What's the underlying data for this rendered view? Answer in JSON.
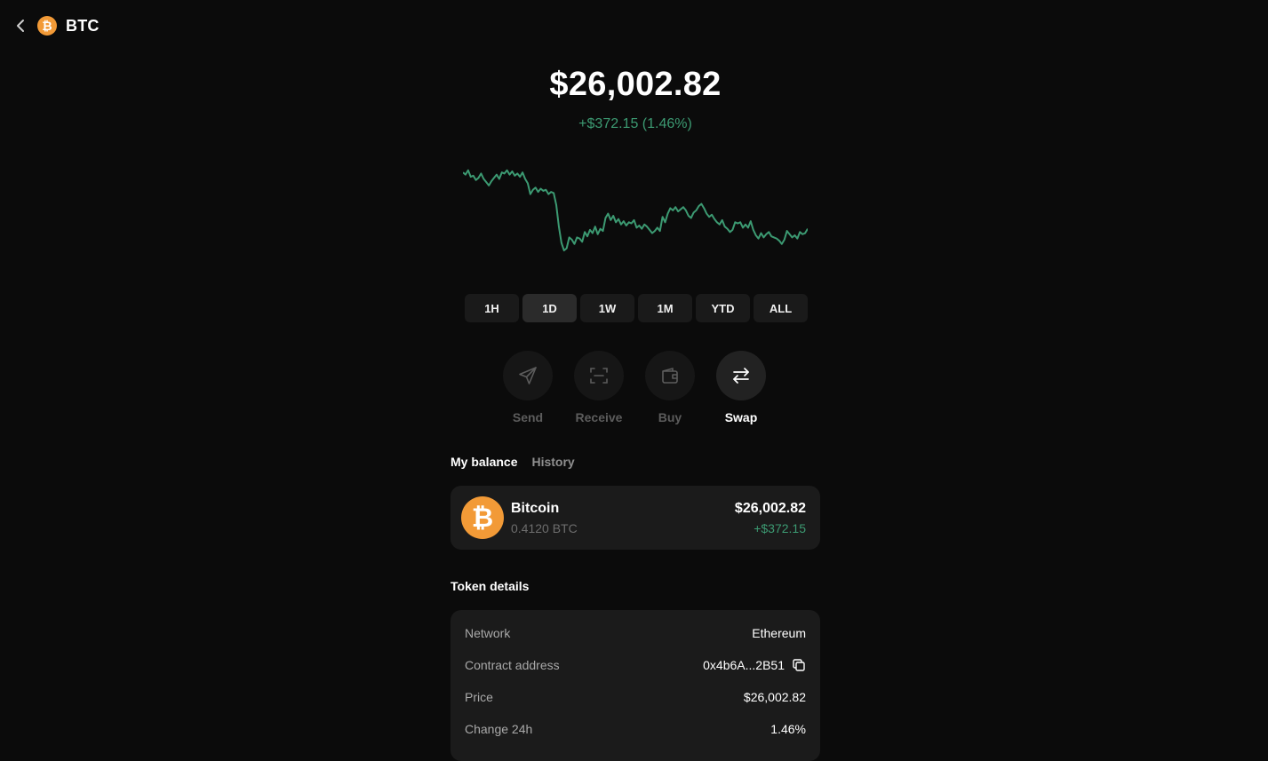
{
  "header": {
    "title": "BTC",
    "coin_symbol": "₿",
    "back_icon": "chevron-left-icon"
  },
  "price": {
    "value": "$26,002.82",
    "change": "+$372.15 (1.46%)"
  },
  "chart_data": {
    "type": "line",
    "title": "",
    "xlabel": "",
    "ylabel": "",
    "y_min": 0,
    "y_max": 100,
    "grid": false,
    "line_color": "#3c9a72",
    "series": [
      {
        "values": [
          90,
          88,
          92,
          86,
          87,
          83,
          85,
          89,
          84,
          81,
          78,
          82,
          85,
          88,
          84,
          90,
          89,
          92,
          88,
          91,
          87,
          89,
          86,
          90,
          84,
          80,
          70,
          74,
          76,
          72,
          75,
          73,
          74,
          70,
          72,
          71,
          60,
          40,
          25,
          18,
          20,
          30,
          28,
          24,
          30,
          29,
          26,
          35,
          31,
          37,
          34,
          40,
          33,
          38,
          36,
          48,
          52,
          46,
          50,
          44,
          47,
          42,
          45,
          41,
          44,
          43,
          46,
          39,
          41,
          38,
          42,
          40,
          37,
          34,
          36,
          39,
          36,
          49,
          44,
          52,
          57,
          55,
          58,
          54,
          56,
          58,
          55,
          50,
          48,
          53,
          55,
          59,
          61,
          57,
          52,
          49,
          51,
          47,
          44,
          42,
          46,
          40,
          38,
          35,
          37,
          44,
          43,
          44,
          39,
          42,
          39,
          45,
          37,
          32,
          29,
          34,
          30,
          33,
          35,
          31,
          30,
          29,
          27,
          24,
          28,
          36,
          33,
          30,
          32,
          29,
          35,
          33,
          34,
          38
        ]
      }
    ]
  },
  "ranges": [
    {
      "label": "1H",
      "active": false
    },
    {
      "label": "1D",
      "active": true
    },
    {
      "label": "1W",
      "active": false
    },
    {
      "label": "1M",
      "active": false
    },
    {
      "label": "YTD",
      "active": false
    },
    {
      "label": "ALL",
      "active": false
    }
  ],
  "actions": [
    {
      "label": "Send",
      "icon": "send-icon",
      "enabled": false
    },
    {
      "label": "Receive",
      "icon": "scan-icon",
      "enabled": false
    },
    {
      "label": "Buy",
      "icon": "wallet-icon",
      "enabled": false
    },
    {
      "label": "Swap",
      "icon": "swap-icon",
      "enabled": true
    }
  ],
  "tabs": [
    {
      "label": "My balance",
      "active": true
    },
    {
      "label": "History",
      "active": false
    }
  ],
  "balance": {
    "name": "Bitcoin",
    "amount": "0.4120 BTC",
    "usd": "$26,002.82",
    "change": "+$372.15",
    "symbol": "₿"
  },
  "token_details": {
    "title": "Token details",
    "rows": [
      {
        "label": "Network",
        "value": "Ethereum"
      },
      {
        "label": "Contract address",
        "value": "0x4b6A...2B51",
        "copy_icon": "copy-icon"
      },
      {
        "label": "Price",
        "value": "$26,002.82"
      },
      {
        "label": "Change 24h",
        "value": "1.46%"
      }
    ]
  },
  "colors": {
    "accent_green": "#3c9a72",
    "btc_orange": "#f29a37",
    "background": "#0b0b0b"
  }
}
